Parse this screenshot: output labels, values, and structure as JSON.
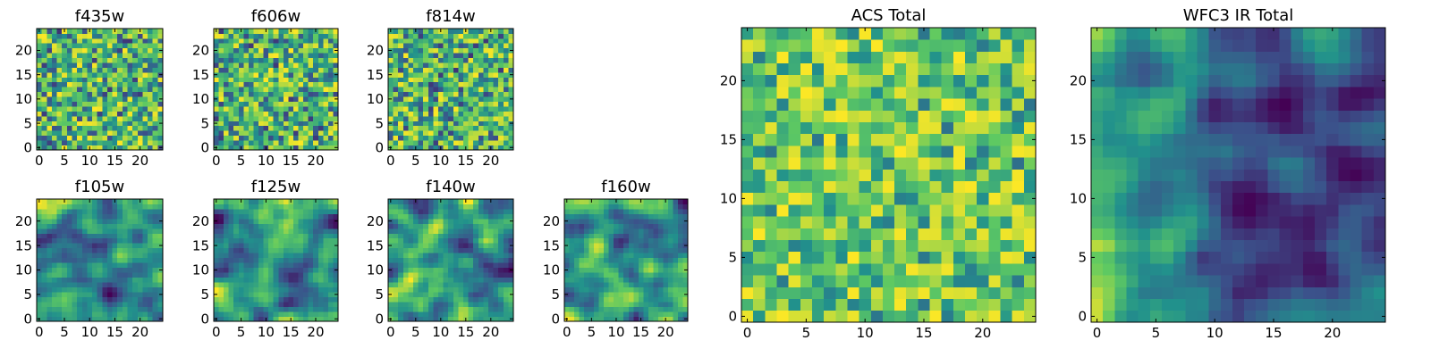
{
  "chart_data": [
    {
      "type": "heatmap",
      "title": "f435w",
      "xticks": [
        "0",
        "5",
        "10",
        "15",
        "20"
      ],
      "yticks": [
        "0",
        "5",
        "10",
        "15",
        "20"
      ],
      "xlim": [
        0,
        25
      ],
      "ylim": [
        0,
        25
      ],
      "grid_size": [
        25,
        25
      ],
      "colormap": "viridis",
      "texture": "noise"
    },
    {
      "type": "heatmap",
      "title": "f606w",
      "xticks": [
        "0",
        "5",
        "10",
        "15",
        "20"
      ],
      "yticks": [
        "0",
        "5",
        "10",
        "15",
        "20"
      ],
      "xlim": [
        0,
        25
      ],
      "ylim": [
        0,
        25
      ],
      "grid_size": [
        25,
        25
      ],
      "colormap": "viridis",
      "texture": "noise"
    },
    {
      "type": "heatmap",
      "title": "f814w",
      "xticks": [
        "0",
        "5",
        "10",
        "15",
        "20"
      ],
      "yticks": [
        "0",
        "5",
        "10",
        "15",
        "20"
      ],
      "xlim": [
        0,
        25
      ],
      "ylim": [
        0,
        25
      ],
      "grid_size": [
        25,
        25
      ],
      "colormap": "viridis",
      "texture": "noise"
    },
    {
      "type": "heatmap",
      "title": "f105w",
      "xticks": [
        "0",
        "5",
        "10",
        "15",
        "20"
      ],
      "yticks": [
        "0",
        "5",
        "10",
        "15",
        "20"
      ],
      "xlim": [
        0,
        25
      ],
      "ylim": [
        0,
        25
      ],
      "grid_size": [
        25,
        25
      ],
      "colormap": "viridis",
      "texture": "smooth"
    },
    {
      "type": "heatmap",
      "title": "f125w",
      "xticks": [
        "0",
        "5",
        "10",
        "15",
        "20"
      ],
      "yticks": [
        "0",
        "5",
        "10",
        "15",
        "20"
      ],
      "xlim": [
        0,
        25
      ],
      "ylim": [
        0,
        25
      ],
      "grid_size": [
        25,
        25
      ],
      "colormap": "viridis",
      "texture": "smooth"
    },
    {
      "type": "heatmap",
      "title": "f140w",
      "xticks": [
        "0",
        "5",
        "10",
        "15",
        "20"
      ],
      "yticks": [
        "0",
        "5",
        "10",
        "15",
        "20"
      ],
      "xlim": [
        0,
        25
      ],
      "ylim": [
        0,
        25
      ],
      "grid_size": [
        25,
        25
      ],
      "colormap": "viridis",
      "texture": "smooth"
    },
    {
      "type": "heatmap",
      "title": "f160w",
      "xticks": [
        "0",
        "5",
        "10",
        "15",
        "20"
      ],
      "yticks": [
        "0",
        "5",
        "10",
        "15",
        "20"
      ],
      "xlim": [
        0,
        25
      ],
      "ylim": [
        0,
        25
      ],
      "grid_size": [
        25,
        25
      ],
      "colormap": "viridis",
      "texture": "smooth"
    },
    {
      "type": "heatmap",
      "title": "ACS Total",
      "xticks": [
        "0",
        "5",
        "10",
        "15",
        "20"
      ],
      "yticks": [
        "0",
        "5",
        "10",
        "15",
        "20"
      ],
      "xlim": [
        0,
        25
      ],
      "ylim": [
        0,
        25
      ],
      "grid_size": [
        25,
        25
      ],
      "colormap": "viridis",
      "texture": "noise-bright"
    },
    {
      "type": "heatmap",
      "title": "WFC3 IR Total",
      "xticks": [
        "0",
        "5",
        "10",
        "15",
        "20"
      ],
      "yticks": [
        "0",
        "5",
        "10",
        "15",
        "20"
      ],
      "xlim": [
        0,
        25
      ],
      "ylim": [
        0,
        25
      ],
      "grid_size": [
        25,
        25
      ],
      "colormap": "viridis",
      "texture": "smooth-left"
    }
  ],
  "colors": {
    "viridis": [
      "#440154",
      "#3b528b",
      "#21918c",
      "#5ec962",
      "#fde725"
    ]
  }
}
